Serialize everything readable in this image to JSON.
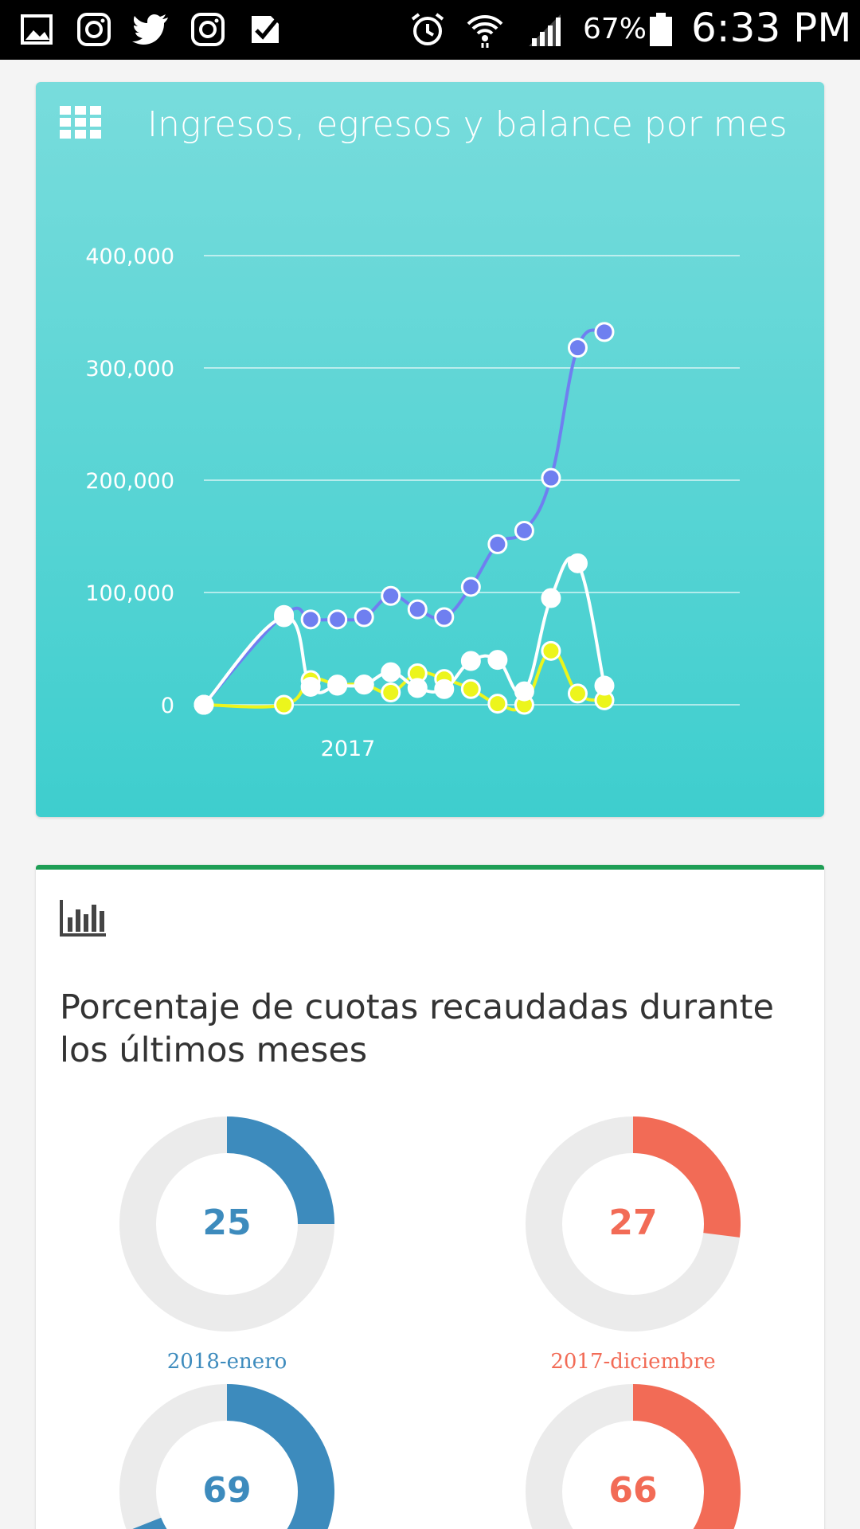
{
  "status_bar": {
    "battery_percent": "67%",
    "time": "6:33 PM",
    "icons": [
      "image-icon",
      "instagram-icon",
      "twitter-icon",
      "instagram-icon",
      "tasks-icon",
      "alarm-icon",
      "wifi-icon",
      "signal-icon",
      "battery-icon"
    ]
  },
  "chart_card": {
    "title": "Ingresos, egresos y balance por mes",
    "icon": "grid-icon"
  },
  "chart_data": {
    "type": "line",
    "title": "Ingresos, egresos y balance por mes",
    "xlabel": "",
    "ylabel": "",
    "x_tick_labels": [
      "2017"
    ],
    "x": [
      0,
      3,
      4,
      5,
      6,
      7,
      8,
      9,
      10,
      11,
      12,
      13,
      14,
      15
    ],
    "y_ticks": [
      "0",
      "100,000",
      "200,000",
      "300,000",
      "400,000"
    ],
    "ylim": [
      0,
      400000
    ],
    "grid": true,
    "series": [
      {
        "color": "#6f7ff0",
        "values": [
          0,
          80000,
          76000,
          76000,
          78000,
          97000,
          85000,
          78000,
          105000,
          143000,
          155000,
          202000,
          318000,
          332000
        ]
      },
      {
        "color": "#ecf51c",
        "values": [
          0,
          0,
          22000,
          18000,
          18000,
          11000,
          28000,
          23000,
          14000,
          1000,
          0,
          48000,
          10000,
          4000
        ]
      },
      {
        "color": "#ffffff",
        "values": [
          0,
          78000,
          16000,
          17000,
          18000,
          29000,
          15000,
          14000,
          39000,
          40000,
          12000,
          95000,
          126000,
          17000
        ]
      }
    ]
  },
  "pct_card": {
    "icon": "bar-chart-icon",
    "title": "Porcentaje de cuotas recaudadas durante los últimos meses",
    "donuts": [
      {
        "value": 25,
        "label": "25",
        "month": "2018-enero",
        "color": "#3d8bbd"
      },
      {
        "value": 27,
        "label": "27",
        "month": "2017-diciembre",
        "color": "#f26b56"
      },
      {
        "value": 69,
        "label": "69",
        "month": "",
        "color": "#3d8bbd"
      },
      {
        "value": 66,
        "label": "66",
        "month": "",
        "color": "#f26b56"
      }
    ],
    "track_color": "#ebebeb"
  }
}
